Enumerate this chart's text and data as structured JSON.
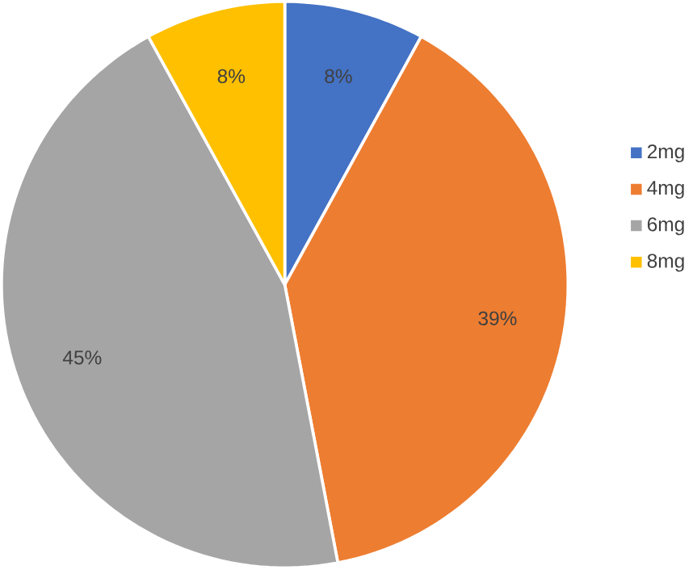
{
  "chart_data": {
    "type": "pie",
    "categories": [
      "2mg",
      "4mg",
      "6mg",
      "8mg"
    ],
    "values": [
      8,
      39,
      45,
      8
    ],
    "value_labels": [
      "8%",
      "39%",
      "45%",
      "8%"
    ],
    "colors": [
      "#4472c4",
      "#ed7d31",
      "#a5a5a5",
      "#ffc000"
    ],
    "legend": "right"
  }
}
